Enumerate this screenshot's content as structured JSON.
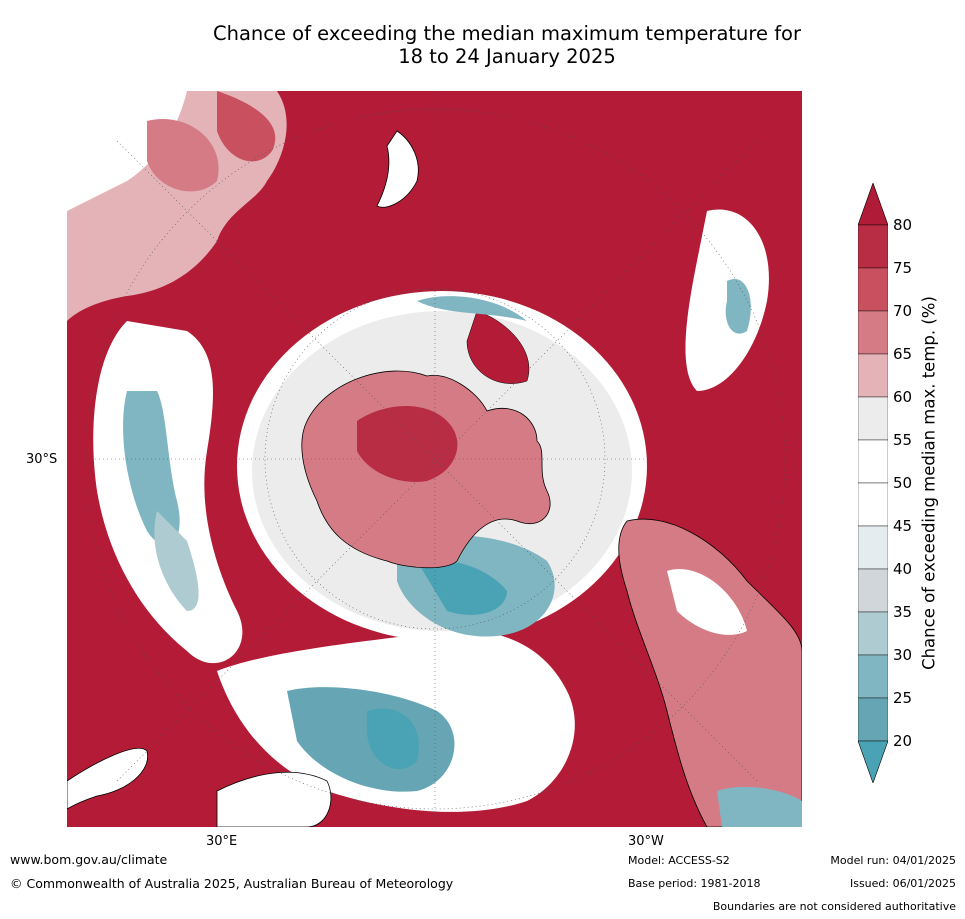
{
  "title": {
    "line1": "Chance of exceeding the median maximum temperature for",
    "line2": "18 to 24 January 2025"
  },
  "axis_labels": {
    "lat_30s": "30°S",
    "lon_30e": "30°E",
    "lon_30w": "30°W"
  },
  "colorbar": {
    "label": "Chance of exceeding median max. temp. (%)",
    "ticks": [
      "80",
      "75",
      "70",
      "65",
      "60",
      "55",
      "50",
      "45",
      "40",
      "35",
      "30",
      "25",
      "20"
    ],
    "levels": [
      {
        "range": "75-80",
        "color": "#b82d44"
      },
      {
        "range": "70-75",
        "color": "#c8505f"
      },
      {
        "range": "65-70",
        "color": "#d57b85"
      },
      {
        "range": "60-65",
        "color": "#e3b3b8"
      },
      {
        "range": "55-60",
        "color": "#ececec"
      },
      {
        "range": "50-55",
        "color": "#ffffff"
      },
      {
        "range": "45-50",
        "color": "#ffffff"
      },
      {
        "range": "40-45",
        "color": "#e5ecf0"
      },
      {
        "range": "35-40",
        "color": "#d0d6d9"
      },
      {
        "range": "30-35",
        "color": "#adcbd0"
      },
      {
        "range": "25-30",
        "color": "#80b5c2"
      },
      {
        "range": "20-25",
        "color": "#66a6b4"
      }
    ],
    "over_color": "#b01b37",
    "under_color": "#4aa3b5"
  },
  "map": {
    "ocean_high_color": "#b31b36",
    "land_outline_color": "#000000",
    "boundary_color": "#888888"
  },
  "footer": {
    "website": "www.bom.gov.au/climate",
    "copyright": "© Commonwealth of Australia 2025, Australian Bureau of Meteorology",
    "model": "Model: ACCESS-S2",
    "base_period": "Base period: 1981-2018",
    "model_run": "Model run: 04/01/2025",
    "issued": "Issued: 06/01/2025",
    "disclaimer": "Boundaries are not considered authoritative"
  }
}
